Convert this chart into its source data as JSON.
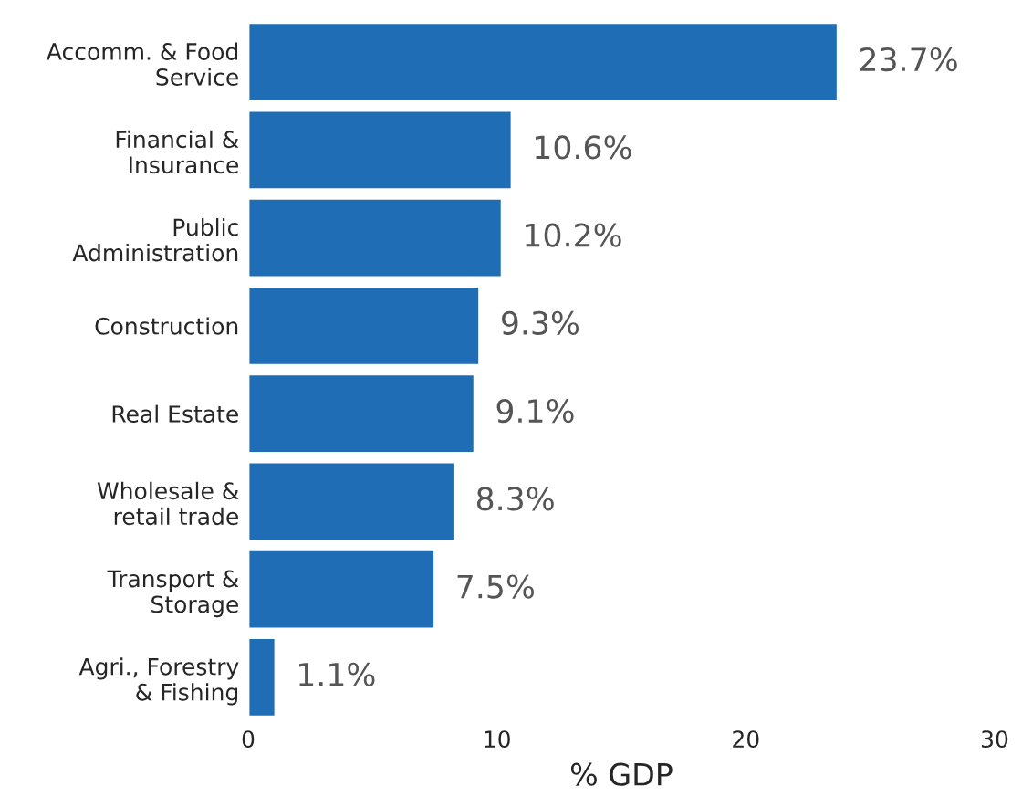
{
  "chart_data": {
    "type": "bar",
    "orientation": "horizontal",
    "xlabel": "% GDP",
    "categories": [
      "Accomm. & Food\nService",
      "Financial &\nInsurance",
      "Public\nAdministration",
      "Construction",
      "Real Estate",
      "Wholesale &\nretail trade",
      "Transport &\nStorage",
      "Agri., Forestry\n& Fishing"
    ],
    "values": [
      23.7,
      10.6,
      10.2,
      9.3,
      9.1,
      8.3,
      7.5,
      1.1
    ],
    "value_labels": [
      "23.7%",
      "10.6%",
      "10.2%",
      "9.3%",
      "9.1%",
      "8.3%",
      "7.5%",
      "1.1%"
    ],
    "color": "#1f6eb5",
    "xlim": [
      0,
      30
    ],
    "xticks": [
      0,
      10,
      20,
      30
    ],
    "grid": false,
    "legend": false
  }
}
